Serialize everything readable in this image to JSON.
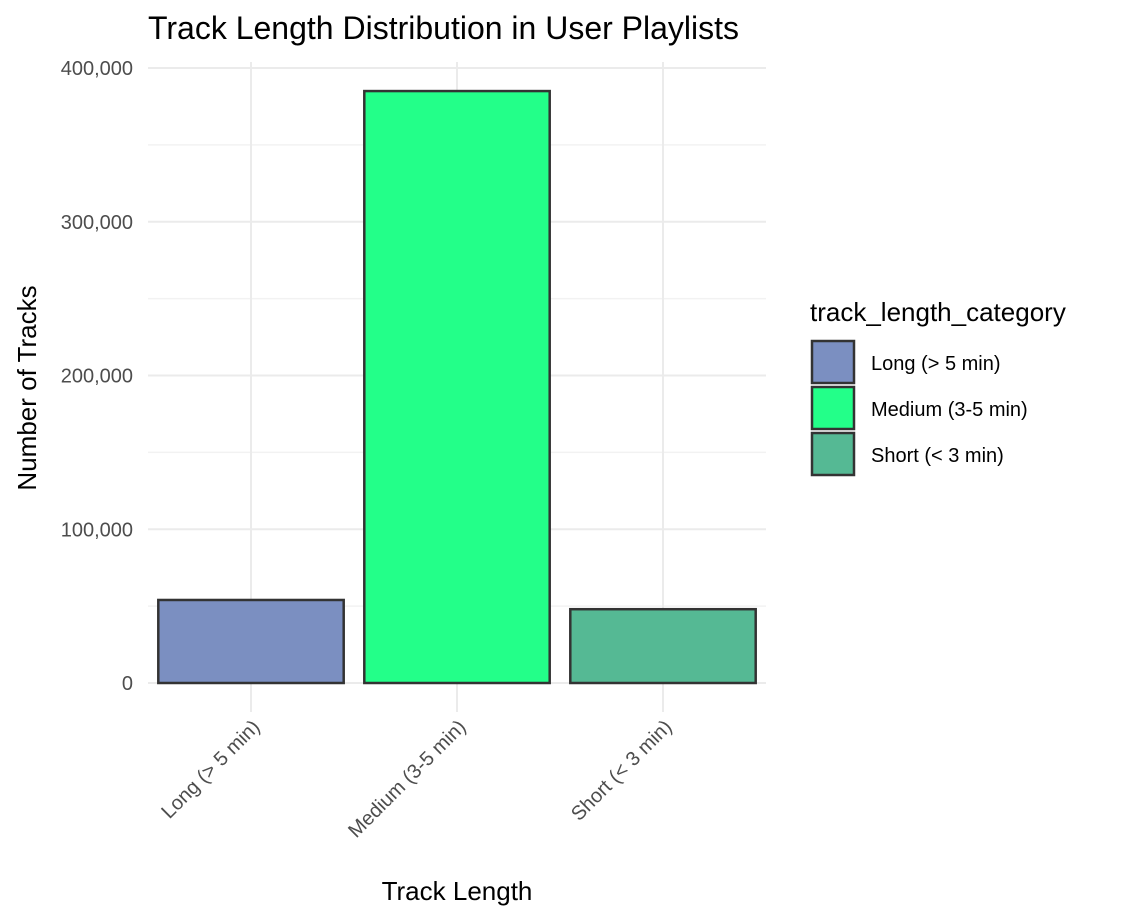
{
  "chart_data": {
    "type": "bar",
    "title": "Track Length Distribution in User Playlists",
    "xlabel": "Track Length",
    "ylabel": "Number of Tracks",
    "categories": [
      "Long (> 5 min)",
      "Medium (3-5 min)",
      "Short (< 3 min)"
    ],
    "values": [
      54000,
      385000,
      48000
    ],
    "colors": [
      "#7B8FC1",
      "#23FF89",
      "#55B994"
    ],
    "ylim": [
      0,
      400000
    ],
    "yticks": [
      0,
      100000,
      200000,
      300000,
      400000
    ],
    "ytick_labels": [
      "0",
      "100,000",
      "200,000",
      "300,000",
      "400,000"
    ],
    "grid": true,
    "legend": {
      "title": "track_length_category",
      "position": "right",
      "items": [
        "Long (> 5 min)",
        "Medium (3-5 min)",
        "Short (< 3 min)"
      ]
    }
  }
}
